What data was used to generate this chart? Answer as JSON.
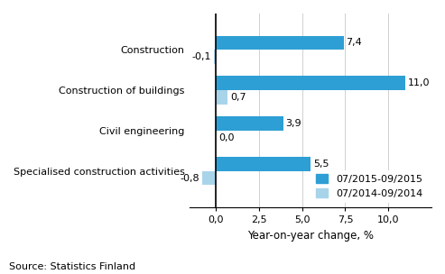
{
  "categories": [
    "Construction",
    "Construction of buildings",
    "Civil engineering",
    "Specialised construction activities"
  ],
  "series_2015": [
    7.4,
    11.0,
    3.9,
    5.5
  ],
  "series_2014": [
    -0.1,
    0.7,
    0.0,
    -0.8
  ],
  "color_2015": "#2e9fd4",
  "color_2014": "#a8d4ea",
  "legend_2015": "07/2015-09/2015",
  "legend_2014": "07/2014-09/2014",
  "xlabel": "Year-on-year change, %",
  "xlim": [
    -1.5,
    12.5
  ],
  "xticks": [
    0.0,
    2.5,
    5.0,
    7.5,
    10.0
  ],
  "xtick_labels": [
    "0,0",
    "2,5",
    "5,0",
    "7,5",
    "10,0"
  ],
  "bar_height": 0.35,
  "source_text": "Source: Statistics Finland",
  "label_fontsize": 8.0,
  "tick_fontsize": 8.0,
  "axis_label_fontsize": 8.5,
  "source_fontsize": 8.0
}
